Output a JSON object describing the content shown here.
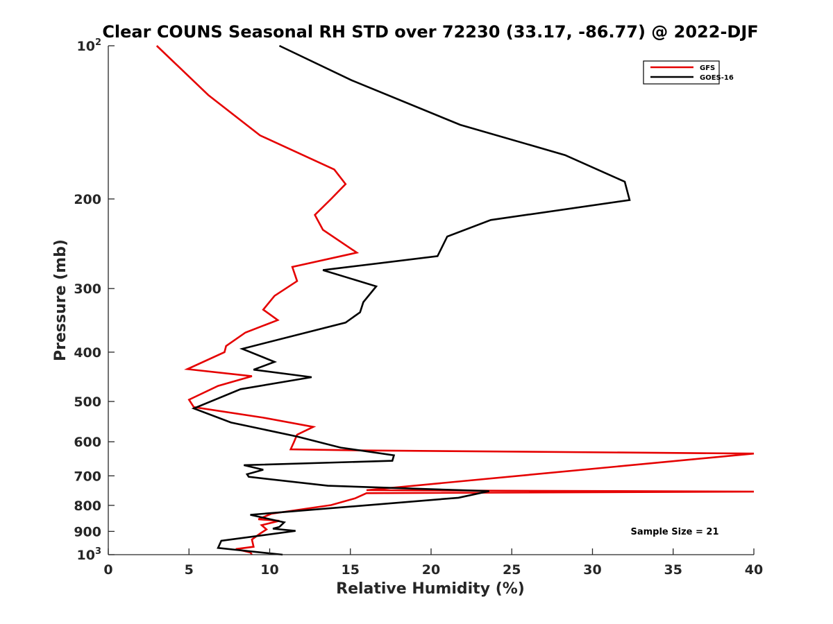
{
  "chart_data": {
    "type": "line",
    "title": "Clear COUNS Seasonal RH STD over 72230 (33.17, -86.77) @ 2022-DJF",
    "xlabel": "Relative Humidity (%)",
    "ylabel": "Pressure (mb)",
    "xlim": [
      0,
      40
    ],
    "ylim": [
      100,
      1000
    ],
    "yscale": "log",
    "y_reversed": true,
    "x_ticks": [
      0,
      5,
      10,
      15,
      20,
      25,
      30,
      35,
      40
    ],
    "y_ticks": [
      {
        "value": 100,
        "base": "10",
        "exp": "2"
      },
      {
        "value": 200,
        "label": "200"
      },
      {
        "value": 300,
        "label": "300"
      },
      {
        "value": 400,
        "label": "400"
      },
      {
        "value": 500,
        "label": "500"
      },
      {
        "value": 600,
        "label": "600"
      },
      {
        "value": 700,
        "label": "700"
      },
      {
        "value": 800,
        "label": "800"
      },
      {
        "value": 900,
        "label": "900"
      },
      {
        "value": 1000,
        "base": "10",
        "exp": "3"
      }
    ],
    "legend_position": "top-right",
    "annotation": "Sample Size = 21",
    "series": [
      {
        "name": "GFS",
        "color": "#e50000",
        "points": [
          [
            3.0,
            100
          ],
          [
            6.2,
            125
          ],
          [
            9.4,
            150
          ],
          [
            14.0,
            175
          ],
          [
            14.7,
            187
          ],
          [
            13.8,
            200
          ],
          [
            12.8,
            215
          ],
          [
            13.3,
            230
          ],
          [
            15.4,
            255
          ],
          [
            11.4,
            272
          ],
          [
            11.7,
            290
          ],
          [
            10.3,
            310
          ],
          [
            9.6,
            330
          ],
          [
            10.5,
            346
          ],
          [
            8.5,
            366
          ],
          [
            7.3,
            389
          ],
          [
            7.2,
            400
          ],
          [
            4.9,
            432
          ],
          [
            8.9,
            446
          ],
          [
            6.8,
            466
          ],
          [
            5.0,
            496
          ],
          [
            5.3,
            513
          ],
          [
            9.6,
            538
          ],
          [
            12.7,
            561
          ],
          [
            11.7,
            581
          ],
          [
            11.5,
            601
          ],
          [
            11.3,
            621
          ],
          [
            16.0,
            624
          ],
          [
            40.0,
            633
          ],
          [
            16.0,
            747
          ],
          [
            40.0,
            752
          ],
          [
            16.0,
            757
          ],
          [
            15.3,
            775
          ],
          [
            13.8,
            799
          ],
          [
            10.1,
            831
          ],
          [
            9.3,
            852
          ],
          [
            10.6,
            858
          ],
          [
            9.5,
            875
          ],
          [
            9.8,
            892
          ],
          [
            9.4,
            909
          ],
          [
            8.9,
            934
          ],
          [
            9.0,
            965
          ],
          [
            7.9,
            975
          ],
          [
            8.8,
            990
          ],
          [
            8.9,
            1000
          ]
        ]
      },
      {
        "name": "GOES-16",
        "color": "#000000",
        "points": [
          [
            10.6,
            100
          ],
          [
            15.1,
            117
          ],
          [
            21.8,
            143
          ],
          [
            28.3,
            164
          ],
          [
            32.0,
            185
          ],
          [
            32.3,
            201
          ],
          [
            23.7,
            220
          ],
          [
            21.0,
            237
          ],
          [
            20.4,
            259
          ],
          [
            13.3,
            276
          ],
          [
            16.6,
            297
          ],
          [
            15.8,
            319
          ],
          [
            15.6,
            334
          ],
          [
            14.7,
            350
          ],
          [
            8.3,
            394
          ],
          [
            10.3,
            418
          ],
          [
            9.0,
            433
          ],
          [
            12.6,
            448
          ],
          [
            8.2,
            473
          ],
          [
            5.3,
            516
          ],
          [
            7.6,
            550
          ],
          [
            11.7,
            586
          ],
          [
            14.4,
            616
          ],
          [
            17.7,
            638
          ],
          [
            17.6,
            654
          ],
          [
            8.4,
            667
          ],
          [
            9.6,
            681
          ],
          [
            8.6,
            695
          ],
          [
            8.7,
            703
          ],
          [
            13.6,
            732
          ],
          [
            23.6,
            750
          ],
          [
            21.7,
            773
          ],
          [
            8.8,
            835
          ],
          [
            10.9,
            864
          ],
          [
            10.6,
            882
          ],
          [
            10.2,
            889
          ],
          [
            11.6,
            898
          ],
          [
            7.0,
            939
          ],
          [
            6.8,
            970
          ],
          [
            10.8,
            1000
          ]
        ]
      }
    ]
  }
}
